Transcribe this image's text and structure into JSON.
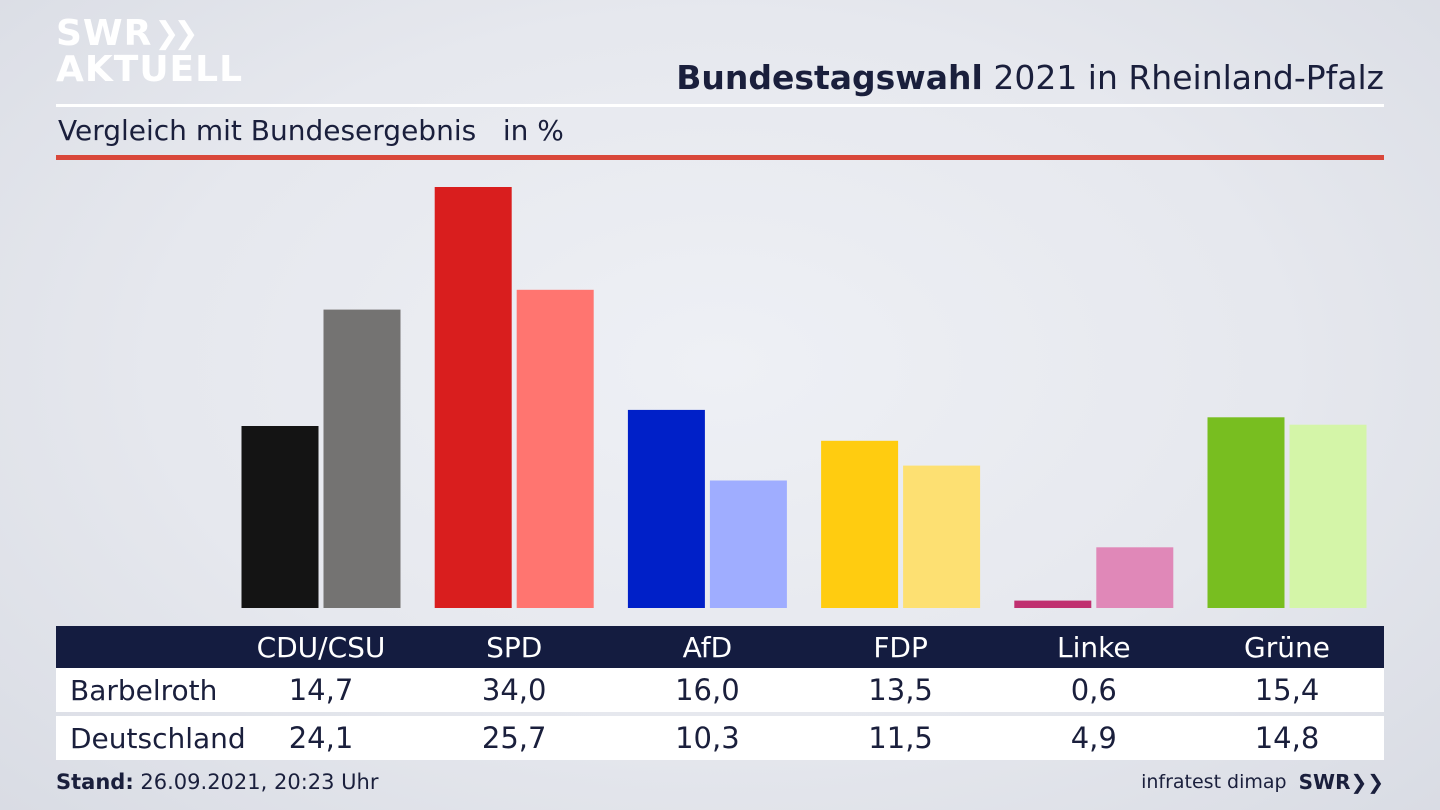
{
  "header": {
    "logo_top": "SWR",
    "logo_bottom": "AKTUELL",
    "title_bold": "Bundestagswahl",
    "title_rest": " 2021 in Rheinland-Pfalz",
    "subtitle": "Vergleich mit Bundesergebnis   in %"
  },
  "colors": {
    "local": [
      "#141414",
      "#d91e1e",
      "#0020c8",
      "#ffcc10",
      "#c03070",
      "#78be20"
    ],
    "national": [
      "#747372",
      "#ff7570",
      "#9fadff",
      "#fde072",
      "#e088b8",
      "#d4f5a8"
    ],
    "header_bg": "#141c40",
    "accent_rule": "#d9473a"
  },
  "chart_data": {
    "type": "bar",
    "categories": [
      "CDU/CSU",
      "SPD",
      "AfD",
      "FDP",
      "Linke",
      "Grüne"
    ],
    "series": [
      {
        "name": "Barbelroth",
        "values": [
          14.7,
          34.0,
          16.0,
          13.5,
          0.6,
          15.4
        ]
      },
      {
        "name": "Deutschland",
        "values": [
          24.1,
          25.7,
          10.3,
          11.5,
          4.9,
          14.8
        ]
      }
    ],
    "ylim": [
      0,
      34.0
    ],
    "grid": false,
    "legend": "table-below"
  },
  "table": {
    "headers": [
      "CDU/CSU",
      "SPD",
      "AfD",
      "FDP",
      "Linke",
      "Grüne"
    ],
    "rows": [
      {
        "label": "Barbelroth",
        "values": [
          "14,7",
          "34,0",
          "16,0",
          "13,5",
          "0,6",
          "15,4"
        ]
      },
      {
        "label": "Deutschland",
        "values": [
          "24,1",
          "25,7",
          "10,3",
          "11,5",
          "4,9",
          "14,8"
        ]
      }
    ]
  },
  "footer": {
    "stand_label": "Stand:",
    "stand_value": " 26.09.2021, 20:23 Uhr",
    "source": "infratest dimap",
    "brand": "SWR"
  }
}
